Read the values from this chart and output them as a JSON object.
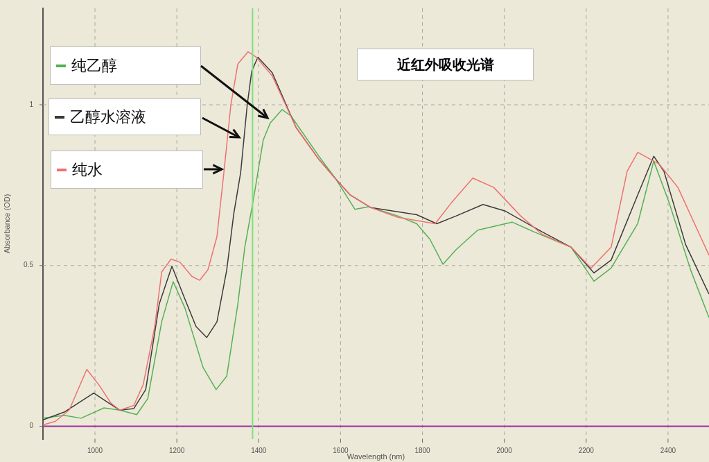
{
  "chart_data": {
    "type": "line",
    "title": "近红外吸收光谱",
    "xlabel": "Wavelength (nm)",
    "ylabel": "Absorbance (OD)",
    "xlim": [
      873,
      2500
    ],
    "ylim": [
      -0.04,
      1.3
    ],
    "xticks": [
      1000,
      1200,
      1400,
      1600,
      1800,
      2000,
      2200,
      2400
    ],
    "yticks": [
      0,
      0.5,
      1
    ],
    "grid": true,
    "legend": "top left",
    "ref_lines": [
      {
        "axis": "y",
        "value": 0,
        "color": "#9b30a0"
      },
      {
        "axis": "x",
        "value": 1385,
        "color": "#7ee07e"
      }
    ],
    "series": [
      {
        "name": "纯水",
        "color": "#f07070",
        "x": [
          873,
          903,
          937,
          980,
          1010,
          1039,
          1061,
          1095,
          1118,
          1146,
          1163,
          1186,
          1208,
          1237,
          1256,
          1276,
          1298,
          1315,
          1332,
          1349,
          1374,
          1394,
          1433,
          1491,
          1547,
          1589,
          1623,
          1674,
          1740,
          1831,
          1870,
          1923,
          1974,
          2040,
          2092,
          2163,
          2212,
          2261,
          2300,
          2326,
          2378,
          2424,
          2500
        ],
        "values": [
          0.004,
          0.015,
          0.05,
          0.177,
          0.128,
          0.072,
          0.05,
          0.065,
          0.13,
          0.31,
          0.48,
          0.52,
          0.51,
          0.466,
          0.454,
          0.487,
          0.59,
          0.79,
          1.0,
          1.127,
          1.165,
          1.148,
          1.09,
          0.93,
          0.83,
          0.768,
          0.72,
          0.68,
          0.65,
          0.63,
          0.694,
          0.772,
          0.743,
          0.654,
          0.597,
          0.557,
          0.492,
          0.557,
          0.793,
          0.852,
          0.816,
          0.743,
          0.532
        ]
      },
      {
        "name": "乙醇水溶液",
        "color": "#3a3a3a",
        "x": [
          873,
          925,
          997,
          1027,
          1061,
          1095,
          1124,
          1157,
          1188,
          1220,
          1247,
          1273,
          1298,
          1322,
          1339,
          1356,
          1372,
          1383,
          1398,
          1433,
          1491,
          1547,
          1589,
          1623,
          1674,
          1786,
          1835,
          1882,
          1948,
          2001,
          2092,
          2163,
          2219,
          2261,
          2326,
          2365,
          2390,
          2443,
          2500
        ],
        "values": [
          0.02,
          0.044,
          0.103,
          0.078,
          0.05,
          0.055,
          0.114,
          0.38,
          0.498,
          0.395,
          0.31,
          0.276,
          0.325,
          0.487,
          0.66,
          0.79,
          1.0,
          1.105,
          1.148,
          1.1,
          0.93,
          0.83,
          0.768,
          0.72,
          0.68,
          0.658,
          0.63,
          0.654,
          0.69,
          0.67,
          0.605,
          0.557,
          0.477,
          0.517,
          0.72,
          0.84,
          0.793,
          0.565,
          0.411
        ]
      },
      {
        "name": "纯乙醇",
        "color": "#55b055",
        "x": [
          873,
          925,
          966,
          1022,
          1061,
          1102,
          1129,
          1163,
          1191,
          1220,
          1264,
          1296,
          1322,
          1349,
          1366,
          1389,
          1411,
          1428,
          1457,
          1479,
          1547,
          1589,
          1635,
          1669,
          1740,
          1786,
          1818,
          1850,
          1882,
          1935,
          2019,
          2072,
          2163,
          2219,
          2261,
          2326,
          2365,
          2403,
          2456,
          2500
        ],
        "values": [
          0.025,
          0.034,
          0.025,
          0.057,
          0.05,
          0.036,
          0.086,
          0.325,
          0.45,
          0.367,
          0.183,
          0.114,
          0.156,
          0.38,
          0.557,
          0.72,
          0.89,
          0.943,
          0.985,
          0.965,
          0.84,
          0.768,
          0.675,
          0.683,
          0.654,
          0.63,
          0.582,
          0.504,
          0.549,
          0.61,
          0.635,
          0.605,
          0.557,
          0.451,
          0.492,
          0.631,
          0.825,
          0.694,
          0.483,
          0.338
        ]
      }
    ]
  }
}
